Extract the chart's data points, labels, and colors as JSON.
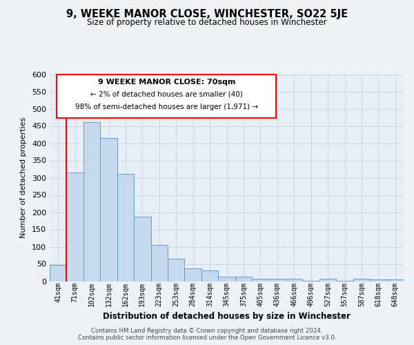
{
  "title": "9, WEEKE MANOR CLOSE, WINCHESTER, SO22 5JE",
  "subtitle": "Size of property relative to detached houses in Winchester",
  "xlabel": "Distribution of detached houses by size in Winchester",
  "ylabel": "Number of detached properties",
  "bar_labels": [
    "41sqm",
    "71sqm",
    "102sqm",
    "132sqm",
    "162sqm",
    "193sqm",
    "223sqm",
    "253sqm",
    "284sqm",
    "314sqm",
    "345sqm",
    "375sqm",
    "405sqm",
    "436sqm",
    "466sqm",
    "496sqm",
    "527sqm",
    "557sqm",
    "587sqm",
    "618sqm",
    "648sqm"
  ],
  "bar_values": [
    48,
    315,
    462,
    415,
    312,
    188,
    105,
    65,
    38,
    32,
    14,
    14,
    8,
    8,
    8,
    2,
    8,
    2,
    8,
    5,
    5
  ],
  "bar_color": "#c5d8ed",
  "bar_edge_color": "#6699cc",
  "red_line_x": 0.5,
  "annotation_title": "9 WEEKE MANOR CLOSE: 70sqm",
  "annotation_line1": "← 2% of detached houses are smaller (40)",
  "annotation_line2": "98% of semi-detached houses are larger (1,971) →",
  "ylim": [
    0,
    600
  ],
  "yticks": [
    0,
    50,
    100,
    150,
    200,
    250,
    300,
    350,
    400,
    450,
    500,
    550,
    600
  ],
  "footer1": "Contains HM Land Registry data © Crown copyright and database right 2024.",
  "footer2": "Contains public sector information licensed under the Open Government Licence v3.0.",
  "bg_color": "#edf2f7",
  "plot_bg_color": "#e8eef5",
  "grid_color": "#c8d4e0"
}
